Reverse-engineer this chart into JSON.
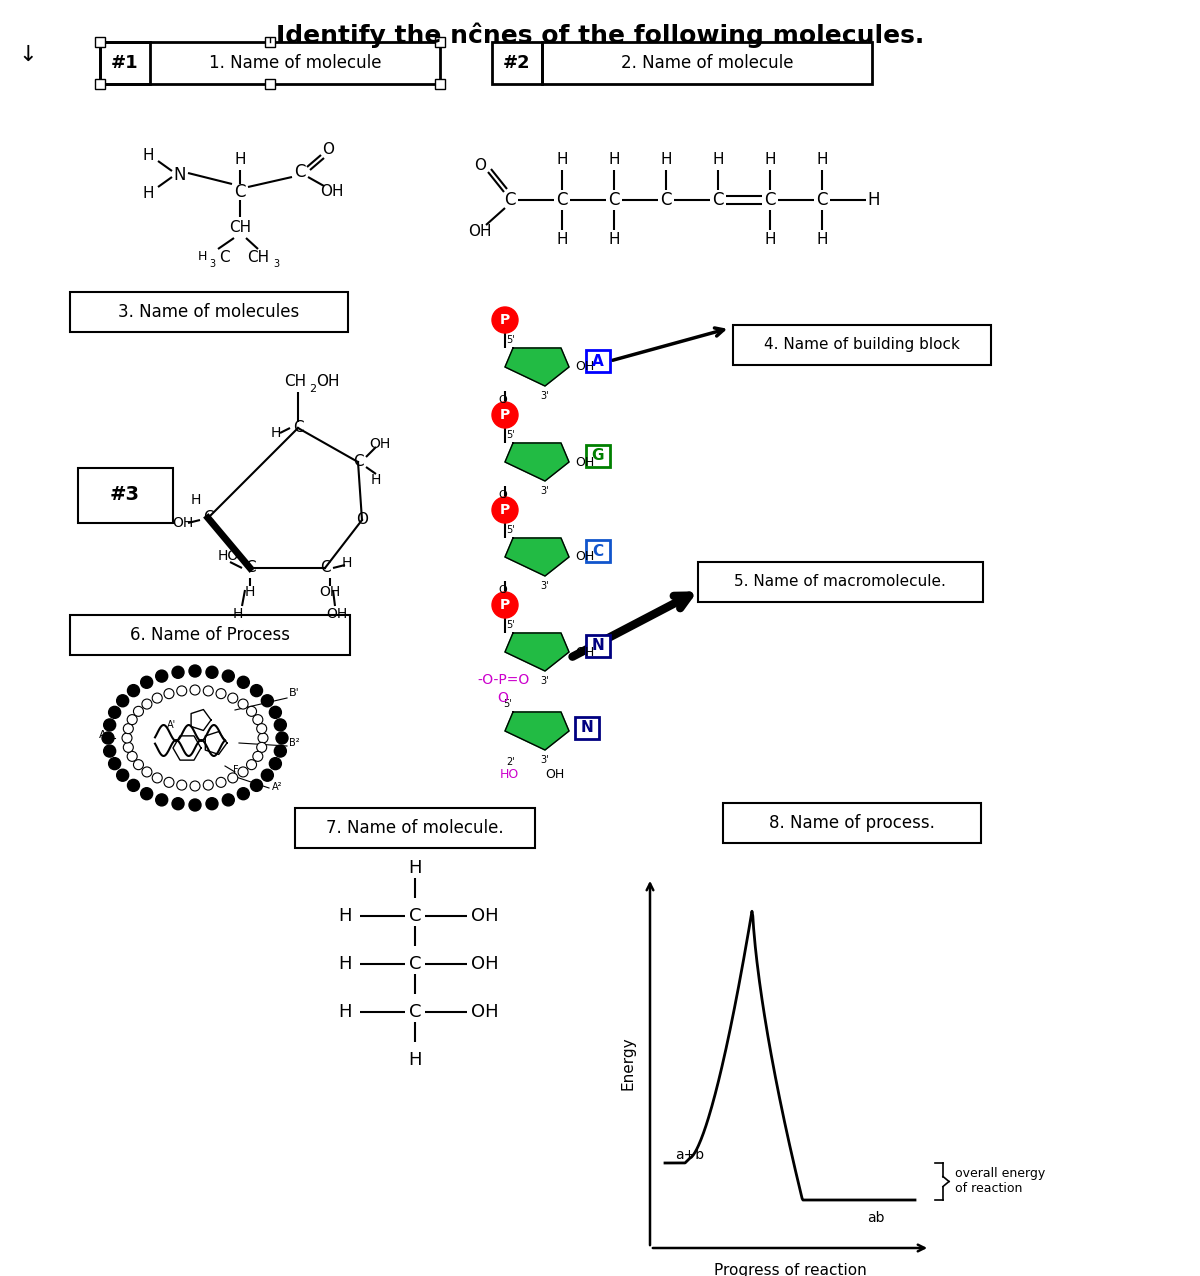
{
  "title": "Identify the nènes of the following molecules.",
  "title_display": "Identify the nɕnes of the following molecules.",
  "background": "#ffffff",
  "box1_label": "#1",
  "box1_text": "1. Name of molecule",
  "box2_label": "#2",
  "box2_text": "2. Name of molecule",
  "box3_label": "#3",
  "box3_text": "3. Name of molecules",
  "box4_text": "4. Name of building block",
  "box5_text": "5. Name of macromolecule.",
  "box6_text": "6. Name of Process",
  "box7_text": "7. Name of molecule.",
  "box8_text": "8. Name of process.",
  "energy_label": "Energy",
  "xaxis_label": "Progress of reaction",
  "reactant_label": "a+b",
  "product_label": "ab",
  "overall_label": "overall energy\nof reaction",
  "anchor_symbol": "↓"
}
